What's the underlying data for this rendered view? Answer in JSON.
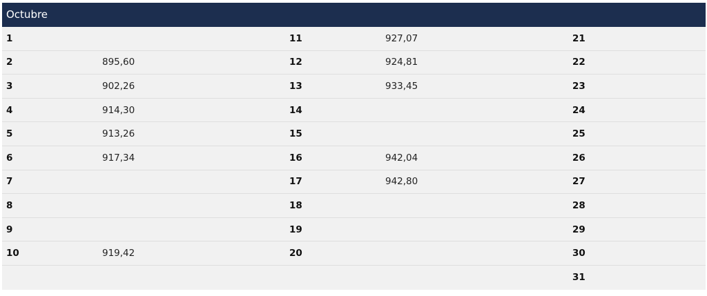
{
  "month": "Octubre",
  "rows": [
    {
      "d1": "1",
      "v1": "",
      "d2": "11",
      "v2": "927,07",
      "d3": "21",
      "v3": ""
    },
    {
      "d1": "2",
      "v1": "895,60",
      "d2": "12",
      "v2": "924,81",
      "d3": "22",
      "v3": ""
    },
    {
      "d1": "3",
      "v1": "902,26",
      "d2": "13",
      "v2": "933,45",
      "d3": "23",
      "v3": ""
    },
    {
      "d1": "4",
      "v1": "914,30",
      "d2": "14",
      "v2": "",
      "d3": "24",
      "v3": ""
    },
    {
      "d1": "5",
      "v1": "913,26",
      "d2": "15",
      "v2": "",
      "d3": "25",
      "v3": ""
    },
    {
      "d1": "6",
      "v1": "917,34",
      "d2": "16",
      "v2": "942,04",
      "d3": "26",
      "v3": ""
    },
    {
      "d1": "7",
      "v1": "",
      "d2": "17",
      "v2": "942,80",
      "d3": "27",
      "v3": ""
    },
    {
      "d1": "8",
      "v1": "",
      "d2": "18",
      "v2": "",
      "d3": "28",
      "v3": ""
    },
    {
      "d1": "9",
      "v1": "",
      "d2": "19",
      "v2": "",
      "d3": "29",
      "v3": ""
    },
    {
      "d1": "10",
      "v1": "919,42",
      "d2": "20",
      "v2": "",
      "d3": "30",
      "v3": ""
    },
    {
      "d1": "",
      "v1": "",
      "d2": "",
      "v2": "",
      "d3": "31",
      "v3": ""
    }
  ]
}
